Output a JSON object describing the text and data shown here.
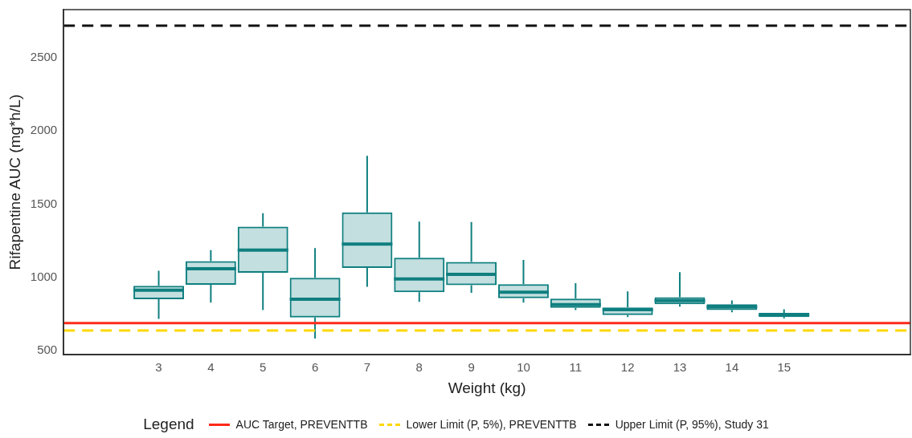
{
  "chart_data": {
    "type": "box",
    "xlabel": "Weight (kg)",
    "ylabel": "Rifapentine AUC (mg*h/L)",
    "legend_title": "Legend",
    "legend": "bottom",
    "categories": [
      "3",
      "4",
      "5",
      "6",
      "7",
      "8",
      "9",
      "10",
      "11",
      "12",
      "13",
      "14",
      "15"
    ],
    "color": "#0f7f80",
    "boxes": [
      {
        "low": 715,
        "q1": 850,
        "median": 912,
        "q3": 941,
        "high": 1044
      },
      {
        "low": 826,
        "q1": 948,
        "median": 1058,
        "q3": 1110,
        "high": 1185
      },
      {
        "low": 775,
        "q1": 1030,
        "median": 1185,
        "q3": 1346,
        "high": 1438
      },
      {
        "low": 581,
        "q1": 725,
        "median": 850,
        "q3": 997,
        "high": 1199
      },
      {
        "low": 935,
        "q1": 1064,
        "median": 1227,
        "q3": 1444,
        "high": 1830
      },
      {
        "low": 832,
        "q1": 898,
        "median": 988,
        "q3": 1133,
        "high": 1381
      },
      {
        "low": 894,
        "q1": 945,
        "median": 1020,
        "q3": 1105,
        "high": 1377
      },
      {
        "low": 826,
        "q1": 856,
        "median": 898,
        "q3": 953,
        "high": 1119
      },
      {
        "low": 775,
        "q1": 790,
        "median": 813,
        "q3": 854,
        "high": 959
      },
      {
        "low": 728,
        "q1": 741,
        "median": 778,
        "q3": 794,
        "high": 903
      },
      {
        "low": 799,
        "q1": 816,
        "median": 840,
        "q3": 863,
        "high": 1035
      },
      {
        "low": 760,
        "q1": 775,
        "median": 797,
        "q3": 816,
        "high": 841
      },
      {
        "low": 718,
        "q1": 728,
        "median": 743,
        "q3": 756,
        "high": 781
      }
    ],
    "ylim": [
      470,
      2830
    ],
    "yticks": [
      500,
      1000,
      1500,
      2000,
      2500
    ],
    "ref_lines": [
      {
        "axis": "y",
        "value": 686,
        "label": "AUC Target, PREVENTTB",
        "color": "#ff2a1a",
        "line_style": "solid"
      },
      {
        "axis": "y",
        "value": 636,
        "label": "Lower Limit (P, 5%), PREVENTTB",
        "color": "#ffd700",
        "line_style": "dashed"
      },
      {
        "axis": "y",
        "value": 2720,
        "label": "Upper Limit (P, 95%), Study 31",
        "color": "#111111",
        "line_style": "dashed"
      }
    ]
  }
}
